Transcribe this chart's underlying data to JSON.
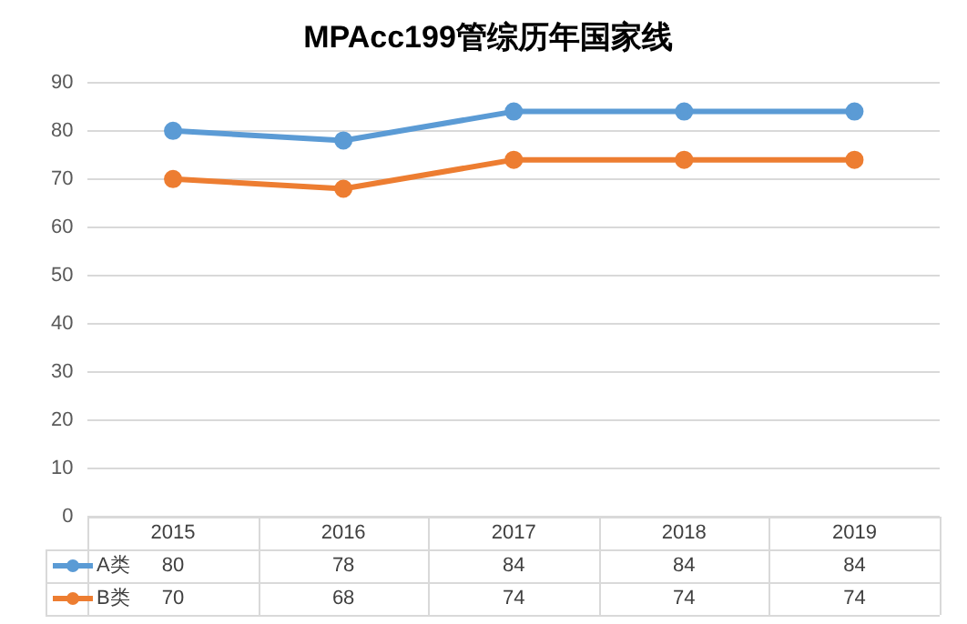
{
  "chart_data": {
    "type": "line",
    "title": "MPAcc199管综历年国家线",
    "categories": [
      "2015",
      "2016",
      "2017",
      "2018",
      "2019"
    ],
    "series": [
      {
        "name": "A类",
        "color": "#5b9bd5",
        "values": [
          80,
          78,
          84,
          84,
          84
        ]
      },
      {
        "name": "B类",
        "color": "#ed7d31",
        "values": [
          70,
          68,
          74,
          74,
          74
        ]
      }
    ],
    "ylim": [
      0,
      90
    ],
    "yticks": [
      0,
      10,
      20,
      30,
      40,
      50,
      60,
      70,
      80,
      90
    ],
    "grid": "y",
    "legend": "bottom",
    "marker": "circle",
    "line_style": "solid",
    "data_labels": true
  }
}
